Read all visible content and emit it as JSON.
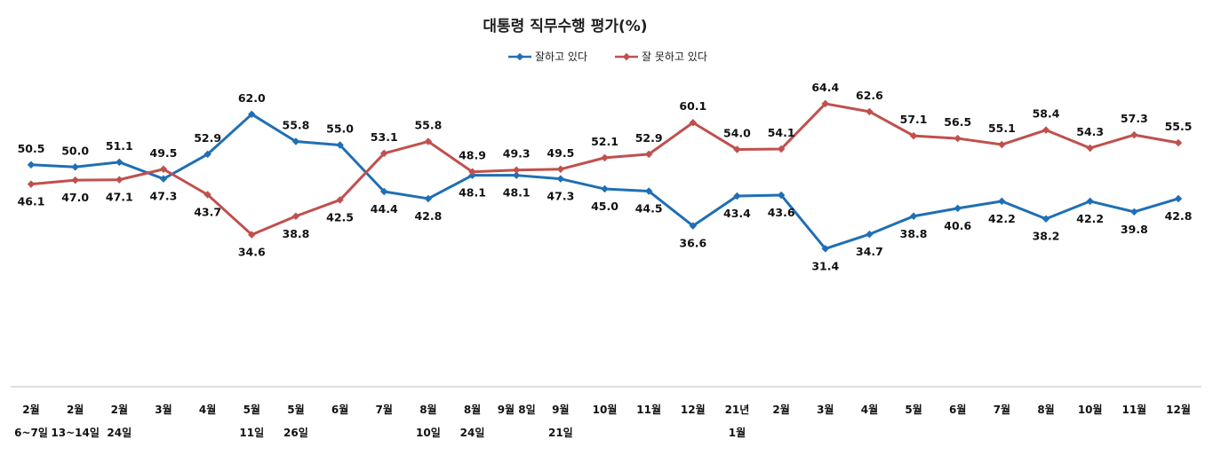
{
  "chart_data": {
    "type": "line",
    "title": "대통령 직무수행 평가(%)",
    "categories": [
      [
        "2월",
        "6~7일"
      ],
      [
        "2월",
        "13~14일"
      ],
      [
        "2월",
        "24일"
      ],
      [
        "3월"
      ],
      [
        "4월"
      ],
      [
        "5월",
        "11일"
      ],
      [
        "5월",
        "26일"
      ],
      [
        "6월"
      ],
      [
        "7월"
      ],
      [
        "8월",
        "10일"
      ],
      [
        "8월",
        "24일"
      ],
      [
        "9월 8일"
      ],
      [
        "9월",
        "21일"
      ],
      [
        "10월"
      ],
      [
        "11월"
      ],
      [
        "12월"
      ],
      [
        "21년",
        "1월"
      ],
      [
        "2월"
      ],
      [
        "3월"
      ],
      [
        "4월"
      ],
      [
        "5월"
      ],
      [
        "6월"
      ],
      [
        "7월"
      ],
      [
        "8월"
      ],
      [
        "10월"
      ],
      [
        "11월"
      ],
      [
        "12월"
      ]
    ],
    "series": [
      {
        "name": "잘하고 있다",
        "color": "#1f6fb4",
        "values": [
          50.5,
          50.0,
          51.1,
          47.3,
          52.9,
          62.0,
          55.8,
          55.0,
          44.4,
          42.8,
          48.1,
          48.1,
          47.3,
          45.0,
          44.5,
          36.6,
          43.4,
          43.6,
          31.4,
          34.7,
          38.8,
          40.6,
          42.2,
          38.2,
          42.2,
          39.8,
          42.8
        ]
      },
      {
        "name": "잘 못하고 있다",
        "color": "#c0504d",
        "values": [
          46.1,
          47.0,
          47.1,
          49.5,
          43.7,
          34.6,
          38.8,
          42.5,
          53.1,
          55.8,
          48.9,
          49.3,
          49.5,
          52.1,
          52.9,
          60.1,
          54.0,
          54.1,
          64.4,
          62.6,
          57.1,
          56.5,
          55.1,
          58.4,
          54.3,
          57.3,
          55.5
        ]
      }
    ],
    "ylim": [
      0,
      88
    ],
    "grid": false,
    "legend_position": "top-center"
  }
}
